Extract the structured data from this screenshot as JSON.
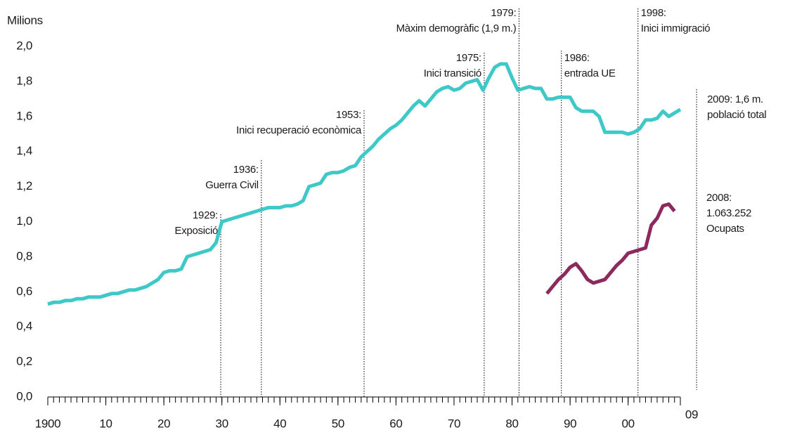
{
  "chart_data": {
    "type": "line",
    "ylabel": "Milions",
    "xlim": [
      1900,
      2009
    ],
    "ylim": [
      0,
      2
    ],
    "xticks": [
      1900,
      {
        "value": 1910,
        "label": "10"
      },
      {
        "value": 1920,
        "label": "20"
      },
      {
        "value": 1930,
        "label": "30"
      },
      {
        "value": 1940,
        "label": "40"
      },
      {
        "value": 1950,
        "label": "50"
      },
      {
        "value": 1960,
        "label": "60"
      },
      {
        "value": 1970,
        "label": "70"
      },
      {
        "value": 1980,
        "label": "80"
      },
      {
        "value": 1990,
        "label": "90"
      },
      {
        "value": 2000,
        "label": "00"
      },
      {
        "value": 2009,
        "label": "09"
      }
    ],
    "yticks": [
      {
        "value": 0,
        "label": "0,0"
      },
      {
        "value": 0.2,
        "label": "0,2"
      },
      {
        "value": 0.4,
        "label": "0,4"
      },
      {
        "value": 0.6,
        "label": "0,6"
      },
      {
        "value": 0.8,
        "label": "0,8"
      },
      {
        "value": 1,
        "label": "1,0"
      },
      {
        "value": 1.2,
        "label": "1,2"
      },
      {
        "value": 1.4,
        "label": "1,4"
      },
      {
        "value": 1.6,
        "label": "1,6"
      },
      {
        "value": 1.8,
        "label": "1,8"
      },
      {
        "value": 2,
        "label": "2,0"
      }
    ],
    "series": [
      {
        "color": "#3ec8c8",
        "x": [
          1900,
          1901,
          1902,
          1903,
          1904,
          1905,
          1906,
          1907,
          1908,
          1909,
          1910,
          1911,
          1912,
          1913,
          1914,
          1915,
          1916,
          1917,
          1918,
          1919,
          1920,
          1921,
          1922,
          1923,
          1924,
          1925,
          1926,
          1927,
          1928,
          1929,
          1930,
          1931,
          1932,
          1933,
          1934,
          1935,
          1936,
          1937,
          1938,
          1939,
          1940,
          1941,
          1942,
          1943,
          1944,
          1945,
          1946,
          1947,
          1948,
          1949,
          1950,
          1951,
          1952,
          1953,
          1954,
          1955,
          1956,
          1957,
          1958,
          1959,
          1960,
          1961,
          1962,
          1963,
          1964,
          1965,
          1966,
          1967,
          1968,
          1969,
          1970,
          1971,
          1972,
          1973,
          1974,
          1975,
          1976,
          1977,
          1978,
          1979,
          1980,
          1981,
          1982,
          1983,
          1984,
          1985,
          1986,
          1987,
          1988,
          1989,
          1990,
          1991,
          1992,
          1993,
          1994,
          1995,
          1996,
          1997,
          1998,
          1999,
          2000,
          2001,
          2002,
          2003,
          2004,
          2005,
          2006,
          2007,
          2008,
          2009
        ],
        "values": [
          0.53,
          0.54,
          0.54,
          0.55,
          0.55,
          0.56,
          0.56,
          0.57,
          0.57,
          0.57,
          0.58,
          0.59,
          0.59,
          0.6,
          0.61,
          0.61,
          0.62,
          0.63,
          0.65,
          0.67,
          0.71,
          0.72,
          0.72,
          0.73,
          0.8,
          0.81,
          0.82,
          0.83,
          0.84,
          0.88,
          1.0,
          1.01,
          1.02,
          1.03,
          1.04,
          1.05,
          1.06,
          1.07,
          1.08,
          1.08,
          1.08,
          1.09,
          1.09,
          1.1,
          1.12,
          1.2,
          1.21,
          1.22,
          1.27,
          1.28,
          1.28,
          1.29,
          1.31,
          1.32,
          1.37,
          1.4,
          1.43,
          1.47,
          1.5,
          1.53,
          1.55,
          1.58,
          1.62,
          1.66,
          1.69,
          1.66,
          1.7,
          1.74,
          1.76,
          1.77,
          1.75,
          1.76,
          1.79,
          1.8,
          1.81,
          1.75,
          1.82,
          1.88,
          1.9,
          1.9,
          1.82,
          1.75,
          1.76,
          1.77,
          1.76,
          1.76,
          1.7,
          1.7,
          1.71,
          1.71,
          1.71,
          1.65,
          1.63,
          1.63,
          1.63,
          1.6,
          1.51,
          1.51,
          1.51,
          1.51,
          1.5,
          1.51,
          1.53,
          1.58,
          1.58,
          1.59,
          1.63,
          1.6,
          1.62,
          1.64
        ]
      },
      {
        "color": "#8c2a5e",
        "x": [
          1986,
          1987,
          1988,
          1989,
          1990,
          1991,
          1992,
          1993,
          1994,
          1995,
          1996,
          1997,
          1998,
          1999,
          2000,
          2001,
          2002,
          2003,
          2004,
          2005,
          2006,
          2007,
          2008
        ],
        "values": [
          0.59,
          0.63,
          0.67,
          0.7,
          0.74,
          0.76,
          0.72,
          0.67,
          0.65,
          0.66,
          0.67,
          0.71,
          0.75,
          0.78,
          0.82,
          0.83,
          0.84,
          0.85,
          0.98,
          1.02,
          1.09,
          1.1,
          1.06
        ]
      }
    ],
    "annotations": [
      {
        "x": 1929.8,
        "lines": [
          "1929:",
          "Exposició"
        ]
      },
      {
        "x": 1936.8,
        "lines": [
          "1936:",
          "Guerra Civil"
        ]
      },
      {
        "x": 1954.5,
        "lines": [
          "1953:",
          "Inici recuperació econòmica"
        ]
      },
      {
        "x": 1975.2,
        "lines": [
          "1975:",
          "Inici transició"
        ]
      },
      {
        "x": 1981.2,
        "lines": [
          "1979:",
          "Màxim demogràfic (1,9 m.)"
        ]
      },
      {
        "x": 1988.5,
        "lines": [
          "1986:",
          "entrada UE"
        ]
      },
      {
        "x": 2001.7,
        "lines": [
          "1998:",
          "Inici immigració"
        ]
      },
      {
        "x": 2011.8,
        "lines": [
          "2009: 1,6 m.",
          "població total"
        ]
      },
      {
        "lines": [
          "2008:",
          "1.063.252",
          "Ocupats"
        ]
      }
    ]
  }
}
